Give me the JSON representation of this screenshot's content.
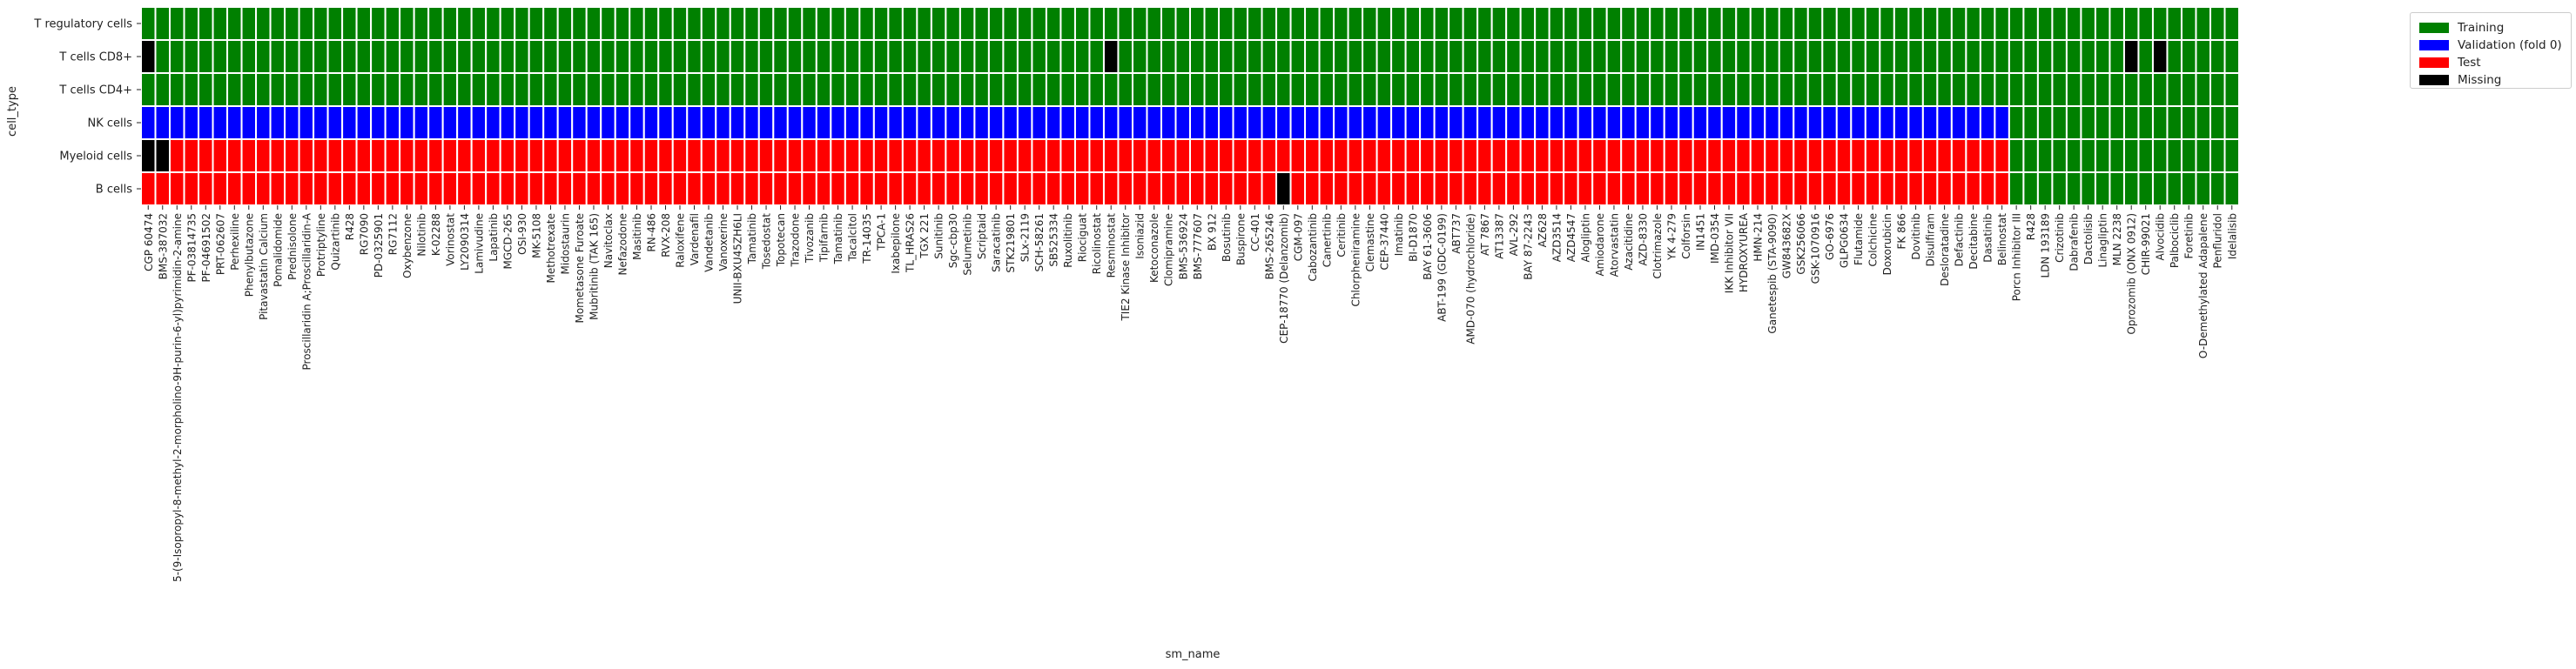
{
  "chart_data": {
    "type": "heatmap",
    "xlabel": "sm_name",
    "ylabel": "cell_type",
    "rows": [
      "T regulatory cells",
      "T cells CD8+",
      "T cells CD4+",
      "NK cells",
      "Myeloid cells",
      "B cells"
    ],
    "columns": [
      "CGP 60474",
      "BMS-387032",
      "5-(9-Isopropyl-8-methyl-2-morpholino-9H-purin-6-yl)pyrimidin-2-amine",
      "PF-03814735",
      "PF-04691502",
      "PRT-062607",
      "Perhexiline",
      "Phenylbutazone",
      "Pitavastatin Calcium",
      "Pomalidomide",
      "Prednisolone",
      "Proscillaridin A;Proscillaridin-A",
      "Protriptyline",
      "Quizartinib",
      "R428",
      "RG7090",
      "PD-0325901",
      "RG7112",
      "Oxybenzone",
      "Nilotinib",
      "K-02288",
      "Vorinostat",
      "LY2090314",
      "Lamivudine",
      "Lapatinib",
      "MGCD-265",
      "OSI-930",
      "MK-5108",
      "Methotrexate",
      "Midostaurin",
      "Mometasone Furoate",
      "Mubritinib (TAK 165)",
      "Navitoclax",
      "Nefazodone",
      "Masitinib",
      "RN-486",
      "RVX-208",
      "Raloxifene",
      "Vardenafil",
      "Vandetanib",
      "Vanoxerine",
      "UNII-BXU45ZH6LI",
      "Tamatinib",
      "Tosedostat",
      "Topotecan",
      "Trazodone",
      "Tivozanib",
      "Tipifarnib",
      "Tamatinib",
      "Tacalcitol",
      "TR-14035",
      "TPCA-1",
      "Ixabepilone",
      "TL_HRAS26",
      "TGX 221",
      "Sunitinib",
      "Sgc-cbp30",
      "Selumetinib",
      "Scriptaid",
      "Saracatinib",
      "STK219801",
      "SLx-2119",
      "SCH-58261",
      "SB525334",
      "Ruxolitinib",
      "Riociguat",
      "Ricolinostat",
      "Resminostat",
      "TIE2 Kinase Inhibitor",
      "Isoniazid",
      "Ketoconazole",
      "Clomipramine",
      "BMS-536924",
      "BMS-777607",
      "BX 912",
      "Bosutinib",
      "Buspirone",
      "CC-401",
      "BMS-265246",
      "CEP-18770 (Delanzomib)",
      "CGM-097",
      "Cabozantinib",
      "Canertinib",
      "Ceritinib",
      "Chlorpheniramine",
      "Clemastine",
      "CEP-37440",
      "Imatinib",
      "BI-D1870",
      "BAY 61-3606",
      "ABT-199 (GDC-0199)",
      "ABT737",
      "AMD-070 (hydrochloride)",
      "AT 7867",
      "AT13387",
      "AVL-292",
      "BAY 87-2243",
      "AZ628",
      "AZD3514",
      "AZD4547",
      "Alogliptin",
      "Amiodarone",
      "Atorvastatin",
      "Azacitidine",
      "AZD-8330",
      "Clotrimazole",
      "YK 4-279",
      "Colforsin",
      "IN1451",
      "IMD-0354",
      "IKK Inhibitor VII",
      "HYDROXYUREA",
      "HMN-214",
      "Ganetespib (STA-9090)",
      "GW843682X",
      "GSK256066",
      "GSK-1070916",
      "GO-6976",
      "GLPG0634",
      "Flutamide",
      "Colchicine",
      "Doxorubicin",
      "FK 866",
      "Dovitinib",
      "Disulfiram",
      "Desloratadine",
      "Defactinib",
      "Decitabine",
      "Dasatinib",
      "Belinostat",
      "Porcn Inhibitor III",
      "R428",
      "LDN 193189",
      "Crizotinib",
      "Dabrafenib",
      "Dactolisib",
      "Linagliptin",
      "MLN 2238",
      "Oprozomib (ONX 0912)",
      "CHIR-99021",
      "Alvocidib",
      "Palbociclib",
      "Foretinib",
      "O-Demethylated Adapalene",
      "Penfluridol",
      "Idelalisib"
    ],
    "categories": {
      "green": "Training",
      "blue": "Validation (fold 0)",
      "red": "Test",
      "black": "Missing"
    },
    "colors": {
      "green": "#008000",
      "blue": "#0000ff",
      "red": "#ff0000",
      "black": "#000000"
    },
    "row_rules": [
      {
        "row": "T regulatory cells",
        "default": "green",
        "overrides": {}
      },
      {
        "row": "T cells CD8+",
        "default": "green",
        "overrides": {
          "0": "black",
          "67": "black",
          "138": "black",
          "140": "black"
        }
      },
      {
        "row": "T cells CD4+",
        "default": "green",
        "overrides": {}
      },
      {
        "row": "NK cells",
        "default": "blue",
        "from_index": 130,
        "from_value": "green",
        "overrides": {}
      },
      {
        "row": "Myeloid cells",
        "default": "red",
        "from_index": 130,
        "from_value": "green",
        "overrides": {
          "0": "black",
          "1": "black"
        }
      },
      {
        "row": "B cells",
        "default": "red",
        "from_index": 130,
        "from_value": "green",
        "overrides": {
          "79": "black"
        }
      }
    ],
    "legend_position": "top-right"
  },
  "legend": {
    "items": [
      {
        "label": "Training",
        "color": "#008000"
      },
      {
        "label": "Validation (fold 0)",
        "color": "#0000ff"
      },
      {
        "label": "Test",
        "color": "#ff0000"
      },
      {
        "label": "Missing",
        "color": "#000000"
      }
    ]
  }
}
